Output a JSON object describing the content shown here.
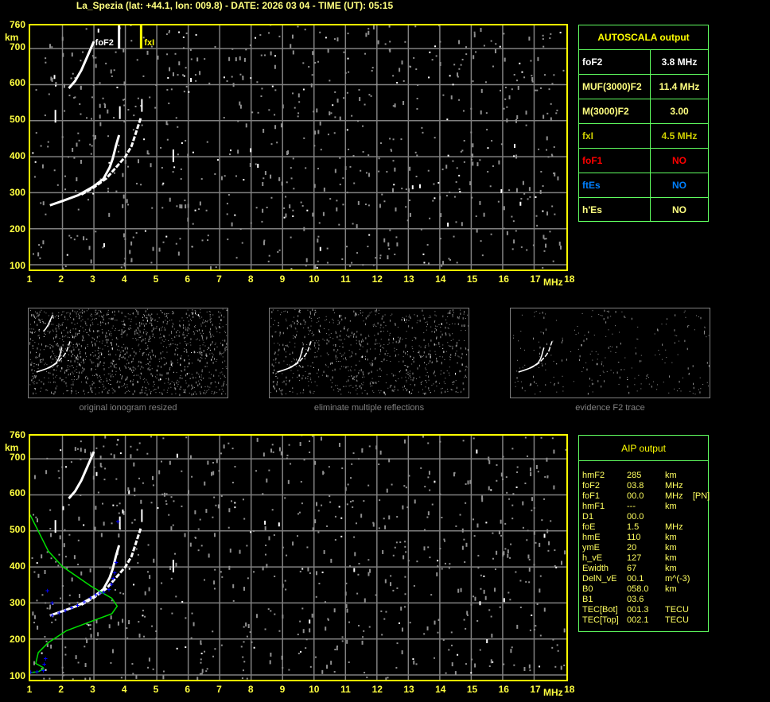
{
  "title": "La_Spezia (lat: +44.1, lon: 009.8) - DATE: 2026 03 04 - TIME (UT): 05:15",
  "colors": {
    "axis": "#ffff00",
    "grid": "#808080",
    "echo": "#ffffff",
    "noise": "#909090",
    "profile": "#00e000",
    "fit": "#0000ff",
    "table_border": "#60ff60"
  },
  "autoscala": {
    "header": "AUTOSCALA output",
    "rows": [
      {
        "key": "foF2",
        "value": "3.8 MHz",
        "color": "#ffffff"
      },
      {
        "key": "MUF(3000)F2",
        "value": "11.4 MHz",
        "color": "#ffff80"
      },
      {
        "key": "M(3000)F2",
        "value": "3.00",
        "color": "#ffff80"
      },
      {
        "key": "fxI",
        "value": "4.5 MHz",
        "color": "#d0d000"
      },
      {
        "key": "foF1",
        "value": "NO",
        "color": "#ff0000"
      },
      {
        "key": "ftEs",
        "value": "NO",
        "color": "#0080ff"
      },
      {
        "key": "h'Es",
        "value": "NO",
        "color": "#ffff80"
      }
    ]
  },
  "aip": {
    "header": "AIP output",
    "rows": [
      [
        "hmF2",
        "285",
        "km"
      ],
      [
        "foF2",
        "03.8",
        "MHz"
      ],
      [
        "foF1",
        "00.0",
        "MHz    [PN]"
      ],
      [
        "hmF1",
        "---",
        "km"
      ],
      [
        "D1",
        "00.0",
        ""
      ],
      [
        "foE",
        "1.5",
        "MHz"
      ],
      [
        "hmE",
        "110",
        "km"
      ],
      [
        "ymE",
        "20",
        "km"
      ],
      [
        "h_vE",
        "127",
        "km"
      ],
      [
        "Ewidth",
        "67",
        "km"
      ],
      [
        "DelN_vE",
        "00.1",
        "m^(-3)"
      ],
      [
        "B0",
        "058.0",
        "km"
      ],
      [
        "B1",
        "03.6",
        ""
      ],
      [
        "TEC[Bot]",
        "001.3",
        "TECU"
      ],
      [
        "TEC[Top]",
        "002.1",
        "TECU"
      ]
    ]
  },
  "thumbnails": [
    "original ionogram resized",
    "eliminate multiple reflections",
    "evidence F2 trace"
  ],
  "chart_data": [
    {
      "type": "scatter",
      "title": "",
      "xlabel": "MHz",
      "ylabel": "km",
      "xlim": [
        1,
        18
      ],
      "ylim": [
        100,
        760
      ],
      "xticks": [
        "1",
        "2",
        "3",
        "4",
        "5",
        "6",
        "7",
        "8",
        "9",
        "10",
        "11",
        "12",
        "13",
        "14",
        "15",
        "16",
        "17",
        "18"
      ],
      "yticks": [
        "100",
        "200",
        "300",
        "400",
        "500",
        "600",
        "700",
        "760"
      ],
      "grid": true,
      "markers": [
        {
          "label": "foF2",
          "freq": 3.8,
          "color": "#ffffff"
        },
        {
          "label": "fxI",
          "freq": 4.5,
          "color": "#ffff00"
        }
      ],
      "traces": [
        {
          "name": "o",
          "points": [
            [
              1.6,
              265
            ],
            [
              2.0,
              277
            ],
            [
              2.5,
              293
            ],
            [
              3.0,
              318
            ],
            [
              3.3,
              338
            ],
            [
              3.5,
              370
            ],
            [
              3.6,
              395
            ],
            [
              3.7,
              430
            ],
            [
              3.8,
              460
            ]
          ]
        },
        {
          "name": "x",
          "points": [
            [
              2.6,
              295
            ],
            [
              3.0,
              315
            ],
            [
              3.4,
              340
            ],
            [
              3.7,
              370
            ],
            [
              4.0,
              400
            ],
            [
              4.2,
              430
            ],
            [
              4.35,
              470
            ],
            [
              4.5,
              510
            ]
          ]
        },
        {
          "name": "multiple",
          "points": [
            [
              2.2,
              590
            ],
            [
              2.4,
              610
            ],
            [
              2.6,
              640
            ],
            [
              2.8,
              680
            ],
            [
              3.0,
              720
            ]
          ]
        }
      ]
    },
    {
      "type": "scatter",
      "xlabel": "MHz",
      "ylabel": "km",
      "xlim": [
        1,
        18
      ],
      "ylim": [
        100,
        760
      ],
      "xticks": [
        "1",
        "2",
        "3",
        "4",
        "5",
        "6",
        "7",
        "8",
        "9",
        "10",
        "11",
        "12",
        "13",
        "14",
        "15",
        "16",
        "17",
        "18"
      ],
      "yticks": [
        "100",
        "200",
        "300",
        "400",
        "500",
        "600",
        "700",
        "760"
      ],
      "grid": true,
      "profile": [
        [
          0.97,
          545
        ],
        [
          1.55,
          444
        ],
        [
          2.0,
          401
        ],
        [
          2.9,
          347
        ],
        [
          3.57,
          313
        ],
        [
          3.74,
          291
        ],
        [
          3.57,
          270
        ],
        [
          2.89,
          248
        ],
        [
          2.13,
          223
        ],
        [
          1.55,
          190
        ],
        [
          1.23,
          162
        ],
        [
          1.15,
          132
        ],
        [
          1.38,
          121
        ],
        [
          1.4,
          117
        ],
        [
          1.23,
          109
        ],
        [
          1.0,
          107
        ]
      ],
      "fit_points": [
        [
          1.0,
          108
        ],
        [
          1.2,
          109
        ],
        [
          1.4,
          112
        ],
        [
          1.43,
          130
        ],
        [
          1.47,
          145
        ],
        [
          1.53,
          334
        ],
        [
          1.68,
          300
        ],
        [
          1.68,
          266
        ],
        [
          1.9,
          272
        ],
        [
          2.1,
          279
        ],
        [
          2.3,
          286
        ],
        [
          2.49,
          293
        ],
        [
          2.7,
          303
        ],
        [
          2.9,
          314
        ],
        [
          3.07,
          323
        ],
        [
          3.2,
          327
        ],
        [
          3.32,
          330
        ],
        [
          3.49,
          337
        ],
        [
          3.57,
          352
        ],
        [
          3.62,
          368
        ],
        [
          3.67,
          384
        ],
        [
          3.72,
          412
        ],
        [
          3.77,
          526
        ]
      ]
    }
  ]
}
